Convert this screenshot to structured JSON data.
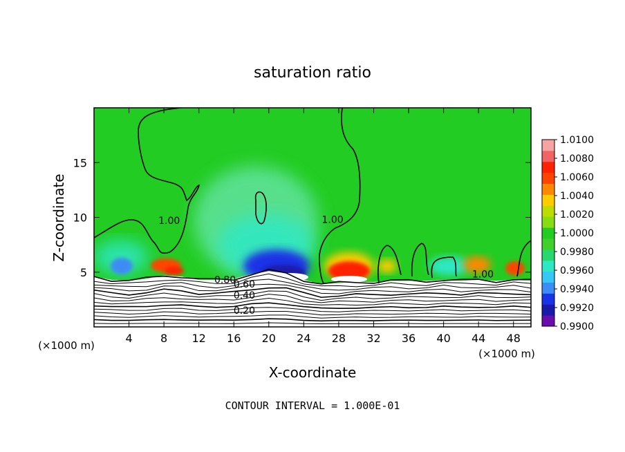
{
  "chart_data": {
    "type": "heatmap",
    "title": "saturation ratio",
    "xlabel": "X-coordinate",
    "ylabel": "Z-coordinate",
    "x_unit_label": "(×1000 m)",
    "footer": "CONTOUR INTERVAL = 1.000E-01",
    "xlim": [
      0,
      50
    ],
    "ylim": [
      0,
      20
    ],
    "x_ticks": [
      4,
      8,
      12,
      16,
      20,
      24,
      28,
      32,
      36,
      40,
      44,
      48
    ],
    "y_ticks": [
      5,
      10,
      15
    ],
    "colorbar": {
      "range": [
        0.99,
        1.01
      ],
      "tick_labels": [
        "1.0100",
        "1.0080",
        "1.0060",
        "1.0040",
        "1.0020",
        "1.0000",
        "0.9980",
        "0.9960",
        "0.9940",
        "0.9920",
        "0.9900"
      ],
      "colors": [
        "#6a0dad",
        "#1a1aa8",
        "#1a33e6",
        "#3d8cf5",
        "#35c7f5",
        "#2ee8c4",
        "#28d86e",
        "#3fd02c",
        "#22cc22",
        "#88dd11",
        "#bbdd00",
        "#ffcc00",
        "#ff8800",
        "#ff4400",
        "#ff2200",
        "#f26464",
        "#f7a3a3"
      ]
    },
    "contour_labels": [
      {
        "text": "1.00",
        "x": 8.6,
        "z": 9.4
      },
      {
        "text": "1.00",
        "x": 27.3,
        "z": 9.5
      },
      {
        "text": "1.00",
        "x": 44.5,
        "z": 4.5
      },
      {
        "text": "0.80",
        "x": 15.0,
        "z": 4.0
      },
      {
        "text": "0.60",
        "x": 17.2,
        "z": 3.6
      },
      {
        "text": "0.40",
        "x": 17.2,
        "z": 2.6
      },
      {
        "text": "0.20",
        "x": 17.2,
        "z": 1.2
      }
    ],
    "terrain_top": [
      [
        0,
        4.6
      ],
      [
        2,
        4.3
      ],
      [
        4,
        4.2
      ],
      [
        6,
        4.4
      ],
      [
        8,
        4.7
      ],
      [
        10,
        4.6
      ],
      [
        12,
        4.3
      ],
      [
        14,
        4.3
      ],
      [
        16,
        4.4
      ],
      [
        18,
        4.8
      ],
      [
        20,
        5.1
      ],
      [
        22,
        4.9
      ],
      [
        24,
        4.3
      ],
      [
        26,
        3.9
      ],
      [
        28,
        4.0
      ],
      [
        30,
        4.1
      ],
      [
        32,
        4.1
      ],
      [
        34,
        4.2
      ],
      [
        36,
        4.2
      ],
      [
        38,
        4.2
      ],
      [
        40,
        4.3
      ],
      [
        42,
        4.2
      ],
      [
        44,
        4.3
      ],
      [
        46,
        4.2
      ],
      [
        48,
        4.3
      ],
      [
        50,
        4.2
      ]
    ],
    "grid": false
  }
}
